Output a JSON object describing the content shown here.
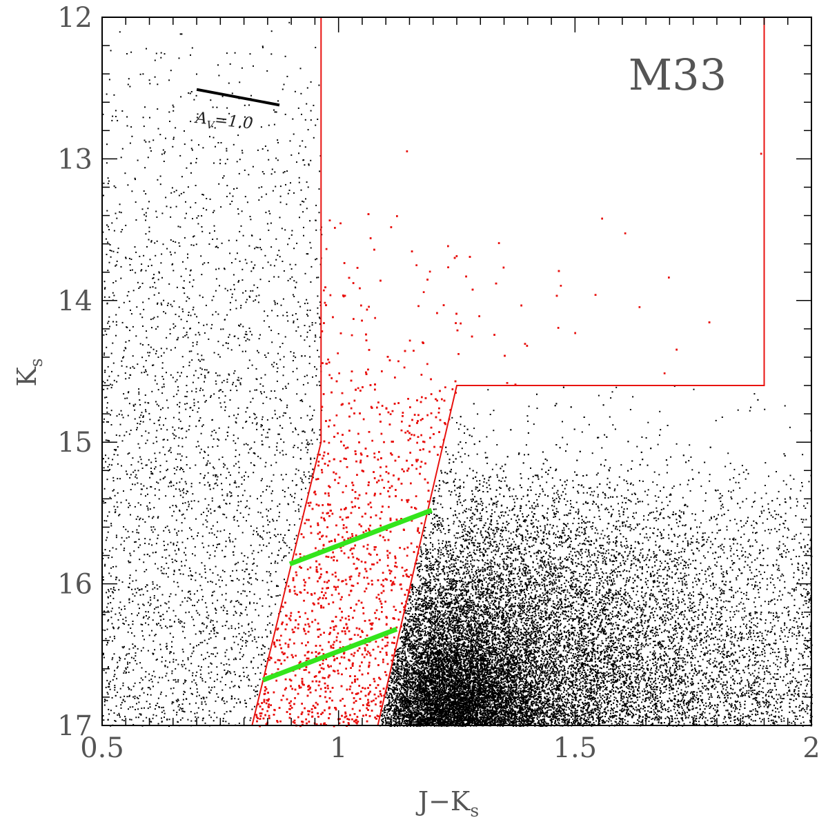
{
  "chart_data": {
    "type": "scatter",
    "title": "M33",
    "xlabel": "J−K",
    "xlabel_sub": "s",
    "ylabel": "K",
    "ylabel_sub": "s",
    "xlim": [
      0.5,
      2.0
    ],
    "ylim": [
      17,
      12
    ],
    "y_inverted": true,
    "x_ticks": [
      0.5,
      1.0,
      1.5,
      2.0
    ],
    "x_tick_labels": [
      "0.5",
      "1",
      "1.5",
      "2"
    ],
    "y_ticks": [
      12,
      13,
      14,
      15,
      16,
      17
    ],
    "y_tick_labels": [
      "12",
      "13",
      "14",
      "15",
      "16",
      "17"
    ],
    "grid": false,
    "colors": {
      "field_points": "#000000",
      "selected_points": "#e8120f",
      "selection_box": "#e8120f",
      "reddening_lines": "#33e51c",
      "axes": "#000000"
    },
    "series": [
      {
        "role": "field-stars",
        "color": "#000000",
        "point_count_approx": 30000,
        "density_regions": [
          {
            "x_range": [
              0.5,
              0.95
            ],
            "y_range": [
              12.0,
              17.0
            ],
            "relative_density": "sparse, increasing toward fainter magnitudes"
          },
          {
            "x_range": [
              1.05,
              2.0
            ],
            "y_range": [
              15.2,
              17.0
            ],
            "relative_density": "dense, peaking near J−Ks 1.2–1.3, Ks 16.8–17"
          },
          {
            "x_range": [
              0.96,
              1.9
            ],
            "y_range": [
              12.0,
              14.6
            ],
            "relative_density": "empty except for a few isolated stars"
          }
        ]
      },
      {
        "role": "selected-stars",
        "color": "#e8120f",
        "point_count_approx": 4000,
        "description": "stars inside the selection polygon, densest at the faint end (Ks 16.5–17)"
      }
    ],
    "selection_polygon": [
      [
        0.963,
        12.0
      ],
      [
        0.963,
        15.0
      ],
      [
        0.817,
        17.0
      ],
      [
        1.083,
        17.0
      ],
      [
        1.25,
        14.6
      ],
      [
        1.9,
        14.6
      ],
      [
        1.9,
        12.0
      ]
    ],
    "reddening_lines": [
      {
        "x": [
          0.897,
          1.197
        ],
        "y": [
          15.86,
          15.48
        ]
      },
      {
        "x": [
          0.84,
          1.123
        ],
        "y": [
          16.68,
          16.32
        ]
      }
    ],
    "annotations": [
      {
        "type": "reddening-vector",
        "x": [
          0.7,
          0.875
        ],
        "y": [
          12.51,
          12.62
        ],
        "label": "A",
        "label_sub": "V",
        "label_suffix": "=1.0"
      }
    ]
  }
}
